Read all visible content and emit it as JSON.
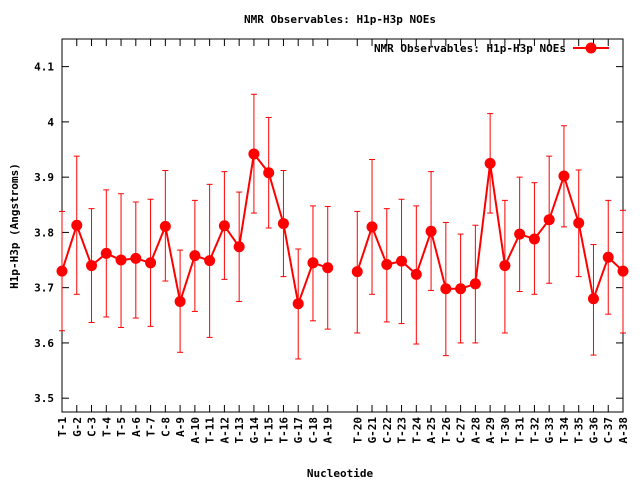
{
  "chart_data": {
    "type": "line",
    "title": "NMR Observables: H1p-H3p NOEs",
    "xlabel": "Nucleotide",
    "ylabel": "H1p-H3p (Angstroms)",
    "ylim": [
      3.475,
      4.15
    ],
    "yticks": [
      3.5,
      3.6,
      3.7,
      3.8,
      3.9,
      4,
      4.1
    ],
    "grid": false,
    "legend_position": "top-right",
    "series": [
      {
        "name": "NMR Observables: H1p-H3p NOEs",
        "color": "#ff0000",
        "segments": [
          {
            "categories": [
              "T-1",
              "G-2",
              "C-3",
              "T-4",
              "T-5",
              "A-6",
              "T-7",
              "C-8",
              "A-9",
              "A-10",
              "T-11",
              "A-12",
              "T-13",
              "G-14",
              "T-15",
              "T-16",
              "G-17",
              "C-18",
              "A-19"
            ],
            "values": [
              3.73,
              3.813,
              3.74,
              3.762,
              3.75,
              3.753,
              3.745,
              3.811,
              3.675,
              3.758,
              3.749,
              3.812,
              3.774,
              3.942,
              3.908,
              3.816,
              3.671,
              3.745,
              3.736
            ],
            "err_low": [
              3.622,
              3.688,
              3.637,
              3.647,
              3.628,
              3.645,
              3.63,
              3.712,
              3.583,
              3.657,
              3.61,
              3.715,
              3.675,
              3.835,
              3.808,
              3.72,
              3.571,
              3.64,
              3.625
            ],
            "err_high": [
              3.838,
              3.938,
              3.843,
              3.877,
              3.87,
              3.855,
              3.86,
              3.912,
              3.768,
              3.858,
              3.887,
              3.91,
              3.873,
              4.05,
              4.008,
              3.912,
              3.77,
              3.848,
              3.847
            ]
          },
          {
            "categories": [
              "T-20",
              "G-21",
              "C-22",
              "T-23",
              "T-24",
              "A-25",
              "T-26",
              "C-27",
              "A-28",
              "A-29",
              "T-30",
              "T-31",
              "T-32",
              "G-33",
              "T-34",
              "T-35",
              "G-36",
              "C-37",
              "A-38"
            ],
            "values": [
              3.729,
              3.81,
              3.742,
              3.748,
              3.724,
              3.802,
              3.698,
              3.698,
              3.707,
              3.925,
              3.74,
              3.797,
              3.788,
              3.823,
              3.902,
              3.817,
              3.68,
              3.755,
              3.73
            ],
            "err_low": [
              3.618,
              3.688,
              3.638,
              3.635,
              3.598,
              3.695,
              3.577,
              3.6,
              3.6,
              3.835,
              3.618,
              3.693,
              3.688,
              3.708,
              3.81,
              3.72,
              3.578,
              3.652,
              3.618
            ],
            "err_high": [
              3.838,
              3.932,
              3.843,
              3.86,
              3.848,
              3.91,
              3.818,
              3.797,
              3.813,
              4.015,
              3.858,
              3.9,
              3.89,
              3.938,
              3.993,
              3.913,
              3.778,
              3.858,
              3.84
            ]
          }
        ]
      }
    ]
  }
}
